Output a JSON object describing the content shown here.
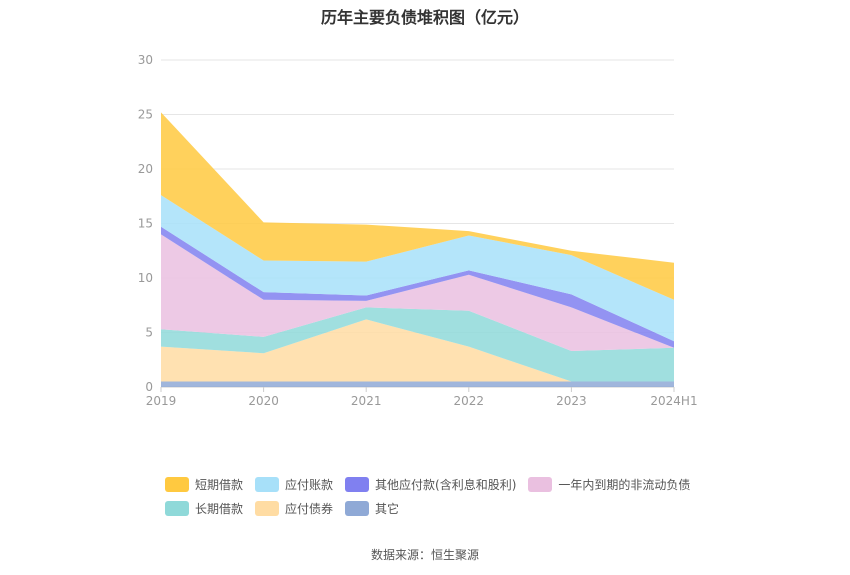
{
  "title": "历年主要负债堆积图（亿元）",
  "source": "数据来源：恒生聚源",
  "chart_data": {
    "type": "area",
    "stacked": true,
    "categories": [
      "2019",
      "2020",
      "2021",
      "2022",
      "2023",
      "2024H1"
    ],
    "ylim": [
      0,
      30
    ],
    "yticks": [
      0,
      5,
      10,
      15,
      20,
      25,
      30
    ],
    "grid": true,
    "legend_position": "bottom",
    "series": [
      {
        "name": "其它",
        "color": "#8fa9d6",
        "values": [
          0.5,
          0.5,
          0.5,
          0.5,
          0.5,
          0.5
        ]
      },
      {
        "name": "应付债券",
        "color": "#ffdca3",
        "values": [
          3.2,
          2.6,
          5.7,
          3.2,
          0.0,
          0.0
        ]
      },
      {
        "name": "长期借款",
        "color": "#8fd9d9",
        "values": [
          1.6,
          1.5,
          1.1,
          3.3,
          2.8,
          3.1
        ]
      },
      {
        "name": "一年内到期的非流动负债",
        "color": "#eac0e0",
        "values": [
          8.7,
          3.4,
          0.6,
          3.3,
          4.0,
          0.0
        ]
      },
      {
        "name": "其他应付款(含利息和股利)",
        "color": "#8080f0",
        "values": [
          0.7,
          0.7,
          0.5,
          0.4,
          1.2,
          0.6
        ]
      },
      {
        "name": "应付账款",
        "color": "#a7e0f9",
        "values": [
          2.9,
          2.9,
          3.1,
          3.2,
          3.6,
          3.8
        ]
      },
      {
        "name": "短期借款",
        "color": "#ffc940",
        "values": [
          7.6,
          3.5,
          3.4,
          0.4,
          0.4,
          3.4
        ]
      }
    ]
  },
  "legend": {
    "row1": [
      {
        "label": "短期借款",
        "color": "#ffc940"
      },
      {
        "label": "应付账款",
        "color": "#a7e0f9"
      },
      {
        "label": "其他应付款(含利息和股利)",
        "color": "#8080f0"
      },
      {
        "label": "一年内到期的非流动负债",
        "color": "#eac0e0"
      }
    ],
    "row2": [
      {
        "label": "长期借款",
        "color": "#8fd9d9"
      },
      {
        "label": "应付债券",
        "color": "#ffdca3"
      },
      {
        "label": "其它",
        "color": "#8fa9d6"
      }
    ]
  }
}
